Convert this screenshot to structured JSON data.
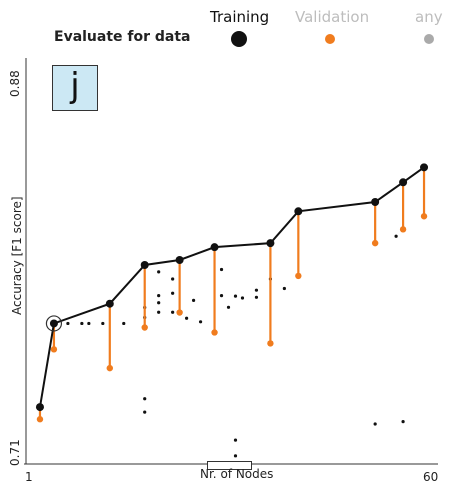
{
  "header": {
    "evaluate_label": "Evaluate for data",
    "legend": [
      {
        "label": "Training",
        "color": "#111111"
      },
      {
        "label": "Validation",
        "color": "#f07c1e"
      },
      {
        "label": "any",
        "color": "#aaaaaa"
      }
    ]
  },
  "panel_letter": "j",
  "chart_data": {
    "type": "scatter",
    "title": "",
    "xlabel": "Nr. of Nodes",
    "ylabel": "Accuracy [F1 score]",
    "xlim": [
      1,
      60
    ],
    "ylim": [
      0.71,
      0.88
    ],
    "x_tick_labels": [
      "1",
      "60"
    ],
    "y_tick_labels": [
      "0.71",
      "0.88"
    ],
    "grid": false,
    "legend_position": "top",
    "selected_point": {
      "x": 5,
      "y": 0.7683
    },
    "pareto_front": {
      "name": "Training",
      "points": [
        {
          "x": 3,
          "y": 0.7331,
          "validation": 0.728
        },
        {
          "x": 5,
          "y": 0.7683,
          "validation": 0.7574
        },
        {
          "x": 13,
          "y": 0.7766,
          "validation": 0.7495
        },
        {
          "x": 18,
          "y": 0.7929,
          "validation": 0.7666
        },
        {
          "x": 23,
          "y": 0.795,
          "validation": 0.7729
        },
        {
          "x": 28,
          "y": 0.8004,
          "validation": 0.7645
        },
        {
          "x": 36,
          "y": 0.8021,
          "validation": 0.7599
        },
        {
          "x": 40,
          "y": 0.8155,
          "validation": 0.7883
        },
        {
          "x": 51,
          "y": 0.8194,
          "validation": 0.8021
        },
        {
          "x": 55,
          "y": 0.8277,
          "validation": 0.8079
        },
        {
          "x": 58,
          "y": 0.834,
          "validation": 0.8134
        }
      ]
    },
    "other_points": {
      "name": "any",
      "points": [
        {
          "x": 7,
          "y": 0.7683
        },
        {
          "x": 9,
          "y": 0.7683
        },
        {
          "x": 10,
          "y": 0.7683
        },
        {
          "x": 12,
          "y": 0.7683
        },
        {
          "x": 15,
          "y": 0.7683
        },
        {
          "x": 18,
          "y": 0.775
        },
        {
          "x": 18,
          "y": 0.7708
        },
        {
          "x": 18,
          "y": 0.7366
        },
        {
          "x": 18,
          "y": 0.731
        },
        {
          "x": 20,
          "y": 0.79
        },
        {
          "x": 20,
          "y": 0.78
        },
        {
          "x": 20,
          "y": 0.777
        },
        {
          "x": 20,
          "y": 0.773
        },
        {
          "x": 22,
          "y": 0.787
        },
        {
          "x": 22,
          "y": 0.781
        },
        {
          "x": 22,
          "y": 0.773
        },
        {
          "x": 24,
          "y": 0.7705
        },
        {
          "x": 25,
          "y": 0.778
        },
        {
          "x": 26,
          "y": 0.769
        },
        {
          "x": 29,
          "y": 0.791
        },
        {
          "x": 29,
          "y": 0.78
        },
        {
          "x": 30,
          "y": 0.7751
        },
        {
          "x": 31,
          "y": 0.7798
        },
        {
          "x": 31,
          "y": 0.7192
        },
        {
          "x": 31,
          "y": 0.7126
        },
        {
          "x": 32,
          "y": 0.779
        },
        {
          "x": 34,
          "y": 0.7823
        },
        {
          "x": 34,
          "y": 0.7793
        },
        {
          "x": 36,
          "y": 0.787
        },
        {
          "x": 38,
          "y": 0.783
        },
        {
          "x": 51,
          "y": 0.726
        },
        {
          "x": 55,
          "y": 0.727
        },
        {
          "x": 54,
          "y": 0.805
        }
      ]
    }
  }
}
